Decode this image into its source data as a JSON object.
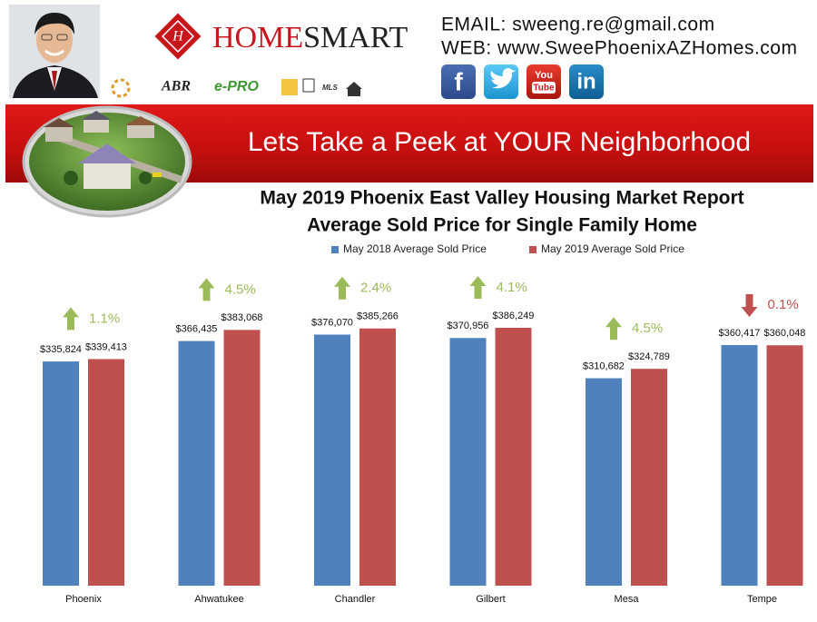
{
  "header": {
    "brand": [
      "HOME",
      "SMART"
    ],
    "email": "EMAIL: sweeng.re@gmail.com",
    "web": "WEB: www.SweePhoenixAZHomes.com",
    "badges": [
      "ABR",
      "e-PRO",
      "MLS"
    ],
    "social": [
      "f",
      "You",
      "Tube",
      "in"
    ]
  },
  "banner": "Lets Take a Peek at YOUR Neighborhood",
  "chart_data": {
    "type": "bar",
    "title": "May 2019 Phoenix East Valley Housing Market Report",
    "subtitle": "Average Sold Price for Single Family Home",
    "categories": [
      "Phoenix",
      "Ahwatukee",
      "Chandler",
      "Gilbert",
      "Mesa",
      "Tempe"
    ],
    "series": [
      {
        "name": "May 2018 Average Sold Price",
        "color": "#4f81bd",
        "values": [
          335824,
          366435,
          376070,
          370956,
          310682,
          360417
        ],
        "value_labels": [
          "$335,824",
          "$366,435",
          "$376,070",
          "$370,956",
          "$310,682",
          "$360,417"
        ]
      },
      {
        "name": "May 2019 Average Sold Price",
        "color": "#c0504d",
        "values": [
          339413,
          383068,
          385266,
          386249,
          324789,
          360048
        ],
        "value_labels": [
          "$339,413",
          "$383,068",
          "$385,266",
          "$386,249",
          "$324,789",
          "$360,048"
        ]
      }
    ],
    "changes": [
      {
        "value": 1.1,
        "label": "1.1%",
        "direction": "up"
      },
      {
        "value": 4.5,
        "label": "4.5%",
        "direction": "up"
      },
      {
        "value": 2.4,
        "label": "2.4%",
        "direction": "up"
      },
      {
        "value": 4.1,
        "label": "4.1%",
        "direction": "up"
      },
      {
        "value": 4.5,
        "label": "4.5%",
        "direction": "up"
      },
      {
        "value": 0.1,
        "label": "0.1%",
        "direction": "down"
      }
    ],
    "change_colors": {
      "up": "#9bbb59",
      "down": "#c0504d"
    },
    "legend": "top"
  }
}
